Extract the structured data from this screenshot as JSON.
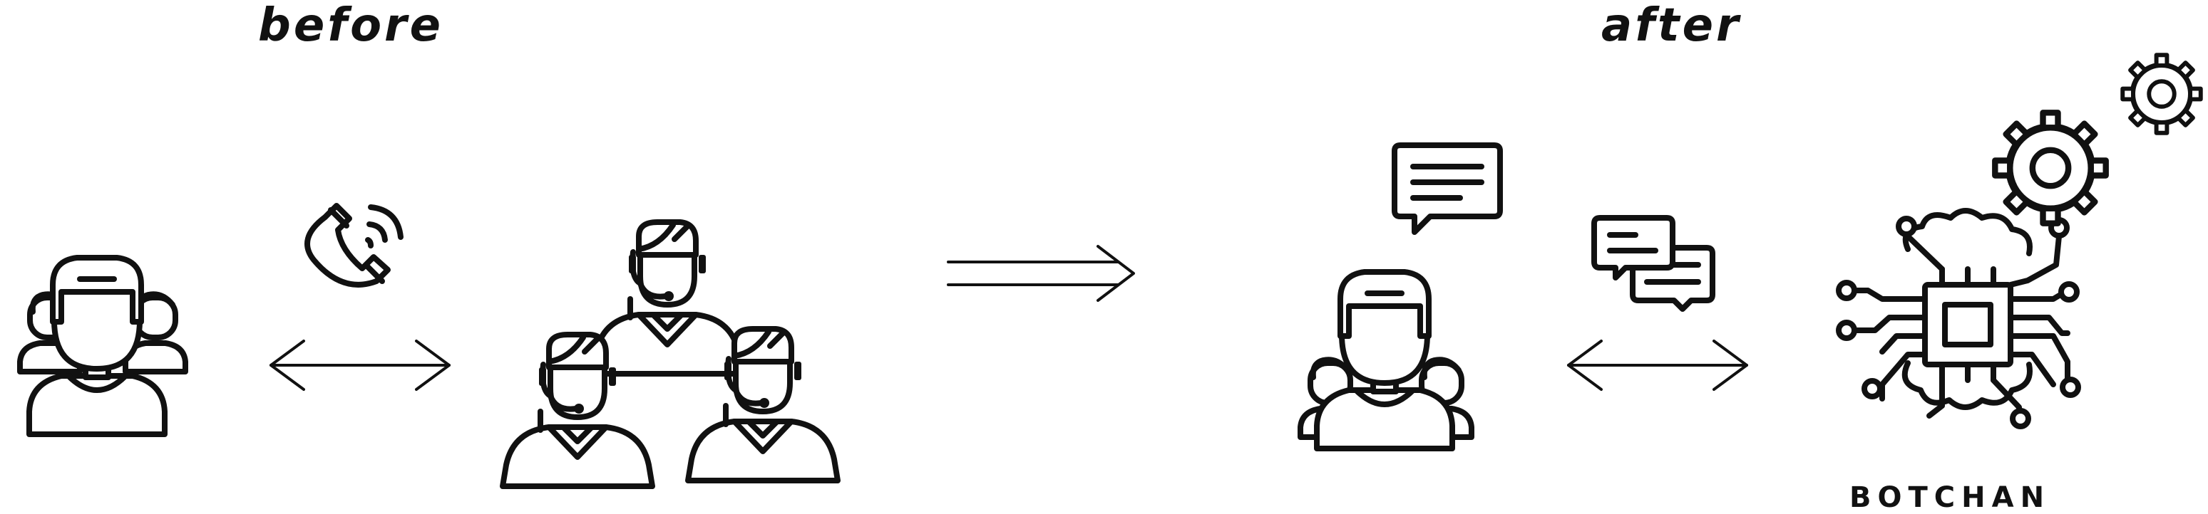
{
  "labels": {
    "before": "before",
    "after": "after",
    "brand": "BOTCHAN"
  },
  "colors": {
    "ink": "#111111",
    "background": "#ffffff"
  },
  "icons": [
    "customer-group-icon",
    "phone-call-icon",
    "call-center-agents-icon",
    "transition-arrow-icon",
    "customer-chat-icon",
    "chat-bubbles-icon",
    "ai-brain-chip-icon",
    "gears-icon"
  ]
}
